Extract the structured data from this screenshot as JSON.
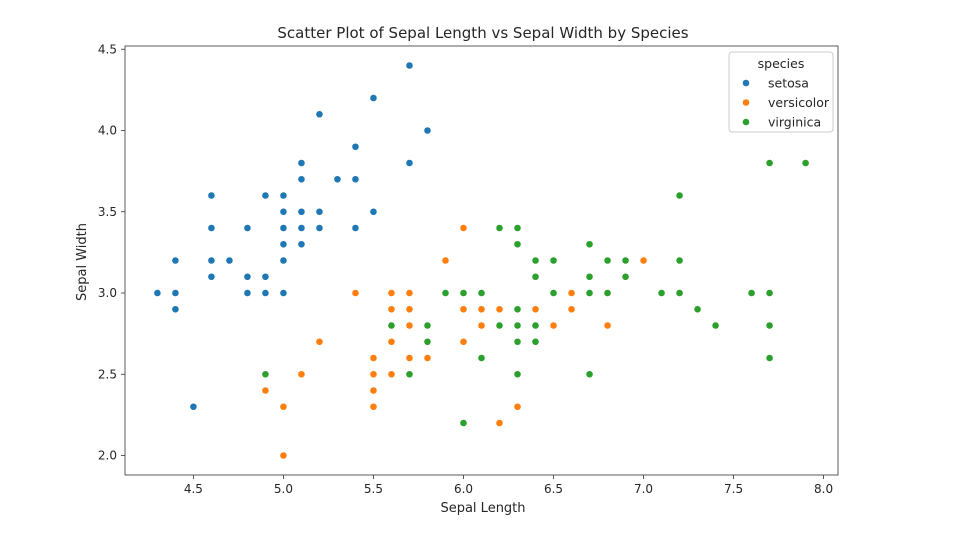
{
  "chart_data": {
    "type": "scatter",
    "title": "Scatter Plot of Sepal Length vs Sepal Width by Species",
    "xlabel": "Sepal Length",
    "ylabel": "Sepal Width",
    "xlim": [
      4.12,
      8.08
    ],
    "ylim": [
      1.88,
      4.52
    ],
    "xticks": [
      4.5,
      5.0,
      5.5,
      6.0,
      6.5,
      7.0,
      7.5,
      8.0
    ],
    "xtick_labels": [
      "4.5",
      "5.0",
      "5.5",
      "6.0",
      "6.5",
      "7.0",
      "7.5",
      "8.0"
    ],
    "yticks": [
      2.0,
      2.5,
      3.0,
      3.5,
      4.0,
      4.5
    ],
    "ytick_labels": [
      "2.0",
      "2.5",
      "3.0",
      "3.5",
      "4.0",
      "4.5"
    ],
    "grid": false,
    "legend": {
      "title": "species",
      "placement": "top-right"
    },
    "series": [
      {
        "name": "setosa",
        "color": "#1f77b4",
        "points": [
          [
            5.1,
            3.5
          ],
          [
            4.9,
            3.0
          ],
          [
            4.7,
            3.2
          ],
          [
            4.6,
            3.1
          ],
          [
            5.0,
            3.6
          ],
          [
            5.4,
            3.9
          ],
          [
            4.6,
            3.4
          ],
          [
            5.0,
            3.4
          ],
          [
            4.4,
            2.9
          ],
          [
            4.9,
            3.1
          ],
          [
            5.4,
            3.7
          ],
          [
            4.8,
            3.4
          ],
          [
            4.8,
            3.0
          ],
          [
            4.3,
            3.0
          ],
          [
            5.8,
            4.0
          ],
          [
            5.7,
            4.4
          ],
          [
            5.4,
            3.9
          ],
          [
            5.1,
            3.5
          ],
          [
            5.7,
            3.8
          ],
          [
            5.1,
            3.8
          ],
          [
            5.4,
            3.4
          ],
          [
            5.1,
            3.7
          ],
          [
            4.6,
            3.6
          ],
          [
            5.1,
            3.3
          ],
          [
            4.8,
            3.4
          ],
          [
            5.0,
            3.0
          ],
          [
            5.0,
            3.4
          ],
          [
            5.2,
            3.5
          ],
          [
            5.2,
            3.4
          ],
          [
            4.7,
            3.2
          ],
          [
            4.8,
            3.1
          ],
          [
            5.4,
            3.4
          ],
          [
            5.2,
            4.1
          ],
          [
            5.5,
            4.2
          ],
          [
            4.9,
            3.1
          ],
          [
            5.0,
            3.2
          ],
          [
            5.5,
            3.5
          ],
          [
            4.9,
            3.6
          ],
          [
            4.4,
            3.0
          ],
          [
            5.1,
            3.4
          ],
          [
            5.0,
            3.5
          ],
          [
            4.5,
            2.3
          ],
          [
            4.4,
            3.2
          ],
          [
            5.0,
            3.5
          ],
          [
            5.1,
            3.8
          ],
          [
            4.8,
            3.0
          ],
          [
            5.1,
            3.8
          ],
          [
            4.6,
            3.2
          ],
          [
            5.3,
            3.7
          ],
          [
            5.0,
            3.3
          ]
        ]
      },
      {
        "name": "versicolor",
        "color": "#ff7f0e",
        "points": [
          [
            7.0,
            3.2
          ],
          [
            6.4,
            3.2
          ],
          [
            6.9,
            3.1
          ],
          [
            5.5,
            2.3
          ],
          [
            6.5,
            2.8
          ],
          [
            5.7,
            2.8
          ],
          [
            6.3,
            3.3
          ],
          [
            4.9,
            2.4
          ],
          [
            6.6,
            2.9
          ],
          [
            5.2,
            2.7
          ],
          [
            5.0,
            2.0
          ],
          [
            5.9,
            3.0
          ],
          [
            6.0,
            2.2
          ],
          [
            6.1,
            2.9
          ],
          [
            5.6,
            2.9
          ],
          [
            6.7,
            3.1
          ],
          [
            5.6,
            3.0
          ],
          [
            5.8,
            2.7
          ],
          [
            6.2,
            2.2
          ],
          [
            5.6,
            2.5
          ],
          [
            5.9,
            3.2
          ],
          [
            6.1,
            2.8
          ],
          [
            6.3,
            2.5
          ],
          [
            6.1,
            2.8
          ],
          [
            6.4,
            2.9
          ],
          [
            6.6,
            3.0
          ],
          [
            6.8,
            2.8
          ],
          [
            6.7,
            3.0
          ],
          [
            6.0,
            2.9
          ],
          [
            5.7,
            2.6
          ],
          [
            5.5,
            2.4
          ],
          [
            5.5,
            2.4
          ],
          [
            5.8,
            2.7
          ],
          [
            6.0,
            2.7
          ],
          [
            5.4,
            3.0
          ],
          [
            6.0,
            3.4
          ],
          [
            6.7,
            3.1
          ],
          [
            6.3,
            2.3
          ],
          [
            5.6,
            3.0
          ],
          [
            5.5,
            2.5
          ],
          [
            5.5,
            2.6
          ],
          [
            6.1,
            3.0
          ],
          [
            5.8,
            2.6
          ],
          [
            5.0,
            2.3
          ],
          [
            5.6,
            2.7
          ],
          [
            5.7,
            3.0
          ],
          [
            5.7,
            2.9
          ],
          [
            6.2,
            2.9
          ],
          [
            5.1,
            2.5
          ],
          [
            5.7,
            2.8
          ]
        ]
      },
      {
        "name": "virginica",
        "color": "#2ca02c",
        "points": [
          [
            6.3,
            3.3
          ],
          [
            5.8,
            2.7
          ],
          [
            7.1,
            3.0
          ],
          [
            6.3,
            2.9
          ],
          [
            6.5,
            3.0
          ],
          [
            7.6,
            3.0
          ],
          [
            4.9,
            2.5
          ],
          [
            7.3,
            2.9
          ],
          [
            6.7,
            2.5
          ],
          [
            7.2,
            3.6
          ],
          [
            6.5,
            3.2
          ],
          [
            6.4,
            2.7
          ],
          [
            6.8,
            3.0
          ],
          [
            5.7,
            2.5
          ],
          [
            5.8,
            2.8
          ],
          [
            6.4,
            3.2
          ],
          [
            6.5,
            3.0
          ],
          [
            7.7,
            3.8
          ],
          [
            7.7,
            2.6
          ],
          [
            6.0,
            2.2
          ],
          [
            6.9,
            3.2
          ],
          [
            5.6,
            2.8
          ],
          [
            7.7,
            2.8
          ],
          [
            6.3,
            2.7
          ],
          [
            6.7,
            3.3
          ],
          [
            7.2,
            3.2
          ],
          [
            6.2,
            2.8
          ],
          [
            6.1,
            3.0
          ],
          [
            6.4,
            2.8
          ],
          [
            7.2,
            3.0
          ],
          [
            7.4,
            2.8
          ],
          [
            7.9,
            3.8
          ],
          [
            6.4,
            2.8
          ],
          [
            6.3,
            2.8
          ],
          [
            6.1,
            2.6
          ],
          [
            7.7,
            3.0
          ],
          [
            6.3,
            3.4
          ],
          [
            6.4,
            3.1
          ],
          [
            6.0,
            3.0
          ],
          [
            6.9,
            3.1
          ],
          [
            6.7,
            3.1
          ],
          [
            6.9,
            3.1
          ],
          [
            5.8,
            2.7
          ],
          [
            6.8,
            3.2
          ],
          [
            6.7,
            3.3
          ],
          [
            6.7,
            3.0
          ],
          [
            6.3,
            2.5
          ],
          [
            6.5,
            3.0
          ],
          [
            6.2,
            3.4
          ],
          [
            5.9,
            3.0
          ]
        ]
      }
    ]
  }
}
